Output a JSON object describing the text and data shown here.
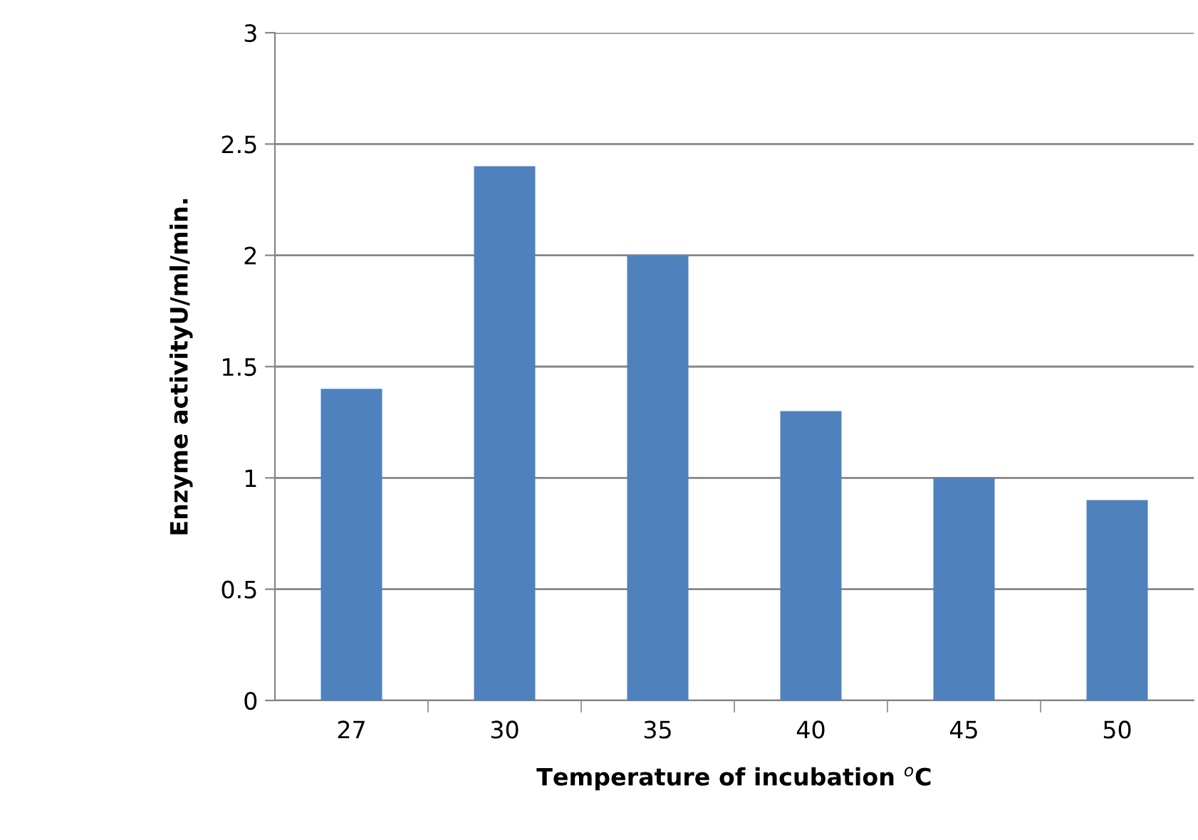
{
  "chart_data": {
    "type": "bar",
    "xlabel": "Temperature of incubation $^{o}$C",
    "ylabel": "Enzyme activityU/ml/min.",
    "categories": [
      "27",
      "30",
      "35",
      "40",
      "45",
      "50"
    ],
    "values": [
      1.4,
      2.4,
      2.0,
      1.3,
      1.0,
      0.9
    ],
    "color": "#4f81bd",
    "ylim": [
      0,
      3
    ],
    "yticks": [
      0,
      {
        "value": 0.5,
        "label": "0.5"
      },
      1,
      {
        "value": 1.5,
        "label": "1.5"
      },
      2,
      {
        "value": 2.5,
        "label": "2.5"
      },
      3
    ],
    "grid": "y",
    "legend": false
  }
}
